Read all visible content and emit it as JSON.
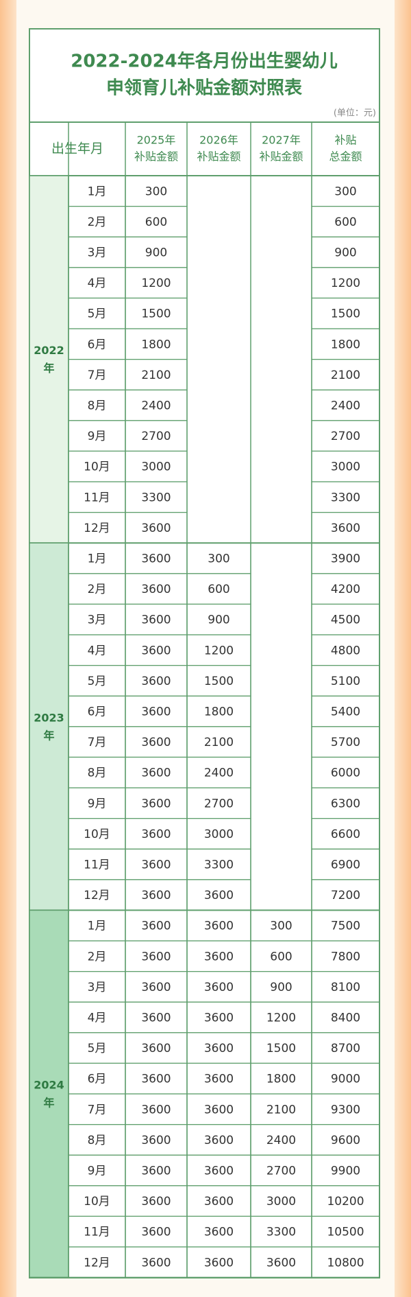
{
  "header": {
    "title_lines": [
      "2022-2024年各月份出生婴幼儿",
      "申领育儿补贴金额对照表"
    ],
    "unit": "(单位：元)"
  },
  "table": {
    "columns": [
      [
        "出生年月"
      ],
      [
        "2025年",
        "补贴金额"
      ],
      [
        "2026年",
        "补贴金额"
      ],
      [
        "2027年",
        "补贴金额"
      ],
      [
        "补贴",
        "总金额"
      ]
    ],
    "groups": [
      {
        "year_lines": [
          "2022",
          "年"
        ],
        "rows": [
          {
            "month": "1月",
            "y2025": 300,
            "total": 300
          },
          {
            "month": "2月",
            "y2025": 600,
            "total": 600
          },
          {
            "month": "3月",
            "y2025": 900,
            "total": 900
          },
          {
            "month": "4月",
            "y2025": 1200,
            "total": 1200
          },
          {
            "month": "5月",
            "y2025": 1500,
            "total": 1500
          },
          {
            "month": "6月",
            "y2025": 1800,
            "total": 1800
          },
          {
            "month": "7月",
            "y2025": 2100,
            "total": 2100
          },
          {
            "month": "8月",
            "y2025": 2400,
            "total": 2400
          },
          {
            "month": "9月",
            "y2025": 2700,
            "total": 2700
          },
          {
            "month": "10月",
            "y2025": 3000,
            "total": 3000
          },
          {
            "month": "11月",
            "y2025": 3300,
            "total": 3300
          },
          {
            "month": "12月",
            "y2025": 3600,
            "total": 3600
          }
        ]
      },
      {
        "year_lines": [
          "2023",
          "年"
        ],
        "rows": [
          {
            "month": "1月",
            "y2025": 3600,
            "y2026": 300,
            "total": 3900
          },
          {
            "month": "2月",
            "y2025": 3600,
            "y2026": 600,
            "total": 4200
          },
          {
            "month": "3月",
            "y2025": 3600,
            "y2026": 900,
            "total": 4500
          },
          {
            "month": "4月",
            "y2025": 3600,
            "y2026": 1200,
            "total": 4800
          },
          {
            "month": "5月",
            "y2025": 3600,
            "y2026": 1500,
            "total": 5100
          },
          {
            "month": "6月",
            "y2025": 3600,
            "y2026": 1800,
            "total": 5400
          },
          {
            "month": "7月",
            "y2025": 3600,
            "y2026": 2100,
            "total": 5700
          },
          {
            "month": "8月",
            "y2025": 3600,
            "y2026": 2400,
            "total": 6000
          },
          {
            "month": "9月",
            "y2025": 3600,
            "y2026": 2700,
            "total": 6300
          },
          {
            "month": "10月",
            "y2025": 3600,
            "y2026": 3000,
            "total": 6600
          },
          {
            "month": "11月",
            "y2025": 3600,
            "y2026": 3300,
            "total": 6900
          },
          {
            "month": "12月",
            "y2025": 3600,
            "y2026": 3600,
            "total": 7200
          }
        ]
      },
      {
        "year_lines": [
          "2024",
          "年"
        ],
        "rows": [
          {
            "month": "1月",
            "y2025": 3600,
            "y2026": 3600,
            "y2027": 300,
            "total": 7500
          },
          {
            "month": "2月",
            "y2025": 3600,
            "y2026": 3600,
            "y2027": 600,
            "total": 7800
          },
          {
            "month": "3月",
            "y2025": 3600,
            "y2026": 3600,
            "y2027": 900,
            "total": 8100
          },
          {
            "month": "4月",
            "y2025": 3600,
            "y2026": 3600,
            "y2027": 1200,
            "total": 8400
          },
          {
            "month": "5月",
            "y2025": 3600,
            "y2026": 3600,
            "y2027": 1500,
            "total": 8700
          },
          {
            "month": "6月",
            "y2025": 3600,
            "y2026": 3600,
            "y2027": 1800,
            "total": 9000
          },
          {
            "month": "7月",
            "y2025": 3600,
            "y2026": 3600,
            "y2027": 2100,
            "total": 9300
          },
          {
            "month": "8月",
            "y2025": 3600,
            "y2026": 3600,
            "y2027": 2400,
            "total": 9600
          },
          {
            "month": "9月",
            "y2025": 3600,
            "y2026": 3600,
            "y2027": 2700,
            "total": 9900
          },
          {
            "month": "10月",
            "y2025": 3600,
            "y2026": 3600,
            "y2027": 3000,
            "total": 10200
          },
          {
            "month": "11月",
            "y2025": 3600,
            "y2026": 3600,
            "y2027": 3300,
            "total": 10500
          },
          {
            "month": "12月",
            "y2025": 3600,
            "y2026": 3600,
            "y2027": 3600,
            "total": 10800
          }
        ]
      }
    ]
  }
}
